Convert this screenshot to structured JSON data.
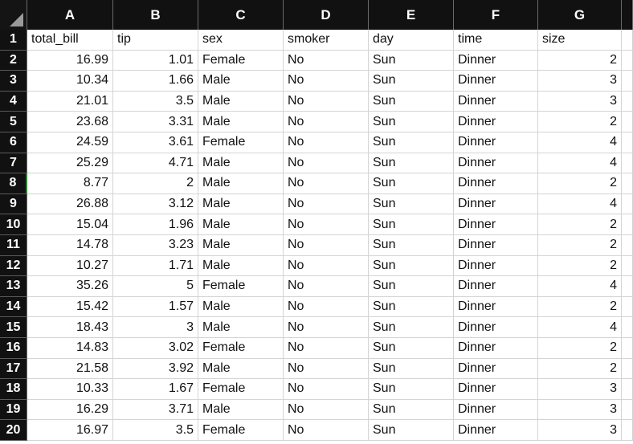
{
  "columns": [
    "A",
    "B",
    "C",
    "D",
    "E",
    "F",
    "G"
  ],
  "selected_row": "8",
  "rows": [
    {
      "n": "1",
      "a": "total_bill",
      "b": "tip",
      "c": "sex",
      "d": "smoker",
      "e": "day",
      "f": "time",
      "g": "size"
    },
    {
      "n": "2",
      "a": "16.99",
      "b": "1.01",
      "c": "Female",
      "d": "No",
      "e": "Sun",
      "f": "Dinner",
      "g": "2"
    },
    {
      "n": "3",
      "a": "10.34",
      "b": "1.66",
      "c": "Male",
      "d": "No",
      "e": "Sun",
      "f": "Dinner",
      "g": "3"
    },
    {
      "n": "4",
      "a": "21.01",
      "b": "3.5",
      "c": "Male",
      "d": "No",
      "e": "Sun",
      "f": "Dinner",
      "g": "3"
    },
    {
      "n": "5",
      "a": "23.68",
      "b": "3.31",
      "c": "Male",
      "d": "No",
      "e": "Sun",
      "f": "Dinner",
      "g": "2"
    },
    {
      "n": "6",
      "a": "24.59",
      "b": "3.61",
      "c": "Female",
      "d": "No",
      "e": "Sun",
      "f": "Dinner",
      "g": "4"
    },
    {
      "n": "7",
      "a": "25.29",
      "b": "4.71",
      "c": "Male",
      "d": "No",
      "e": "Sun",
      "f": "Dinner",
      "g": "4"
    },
    {
      "n": "8",
      "a": "8.77",
      "b": "2",
      "c": "Male",
      "d": "No",
      "e": "Sun",
      "f": "Dinner",
      "g": "2"
    },
    {
      "n": "9",
      "a": "26.88",
      "b": "3.12",
      "c": "Male",
      "d": "No",
      "e": "Sun",
      "f": "Dinner",
      "g": "4"
    },
    {
      "n": "10",
      "a": "15.04",
      "b": "1.96",
      "c": "Male",
      "d": "No",
      "e": "Sun",
      "f": "Dinner",
      "g": "2"
    },
    {
      "n": "11",
      "a": "14.78",
      "b": "3.23",
      "c": "Male",
      "d": "No",
      "e": "Sun",
      "f": "Dinner",
      "g": "2"
    },
    {
      "n": "12",
      "a": "10.27",
      "b": "1.71",
      "c": "Male",
      "d": "No",
      "e": "Sun",
      "f": "Dinner",
      "g": "2"
    },
    {
      "n": "13",
      "a": "35.26",
      "b": "5",
      "c": "Female",
      "d": "No",
      "e": "Sun",
      "f": "Dinner",
      "g": "4"
    },
    {
      "n": "14",
      "a": "15.42",
      "b": "1.57",
      "c": "Male",
      "d": "No",
      "e": "Sun",
      "f": "Dinner",
      "g": "2"
    },
    {
      "n": "15",
      "a": "18.43",
      "b": "3",
      "c": "Male",
      "d": "No",
      "e": "Sun",
      "f": "Dinner",
      "g": "4"
    },
    {
      "n": "16",
      "a": "14.83",
      "b": "3.02",
      "c": "Female",
      "d": "No",
      "e": "Sun",
      "f": "Dinner",
      "g": "2"
    },
    {
      "n": "17",
      "a": "21.58",
      "b": "3.92",
      "c": "Male",
      "d": "No",
      "e": "Sun",
      "f": "Dinner",
      "g": "2"
    },
    {
      "n": "18",
      "a": "10.33",
      "b": "1.67",
      "c": "Female",
      "d": "No",
      "e": "Sun",
      "f": "Dinner",
      "g": "3"
    },
    {
      "n": "19",
      "a": "16.29",
      "b": "3.71",
      "c": "Male",
      "d": "No",
      "e": "Sun",
      "f": "Dinner",
      "g": "3"
    },
    {
      "n": "20",
      "a": "16.97",
      "b": "3.5",
      "c": "Female",
      "d": "No",
      "e": "Sun",
      "f": "Dinner",
      "g": "3"
    }
  ]
}
